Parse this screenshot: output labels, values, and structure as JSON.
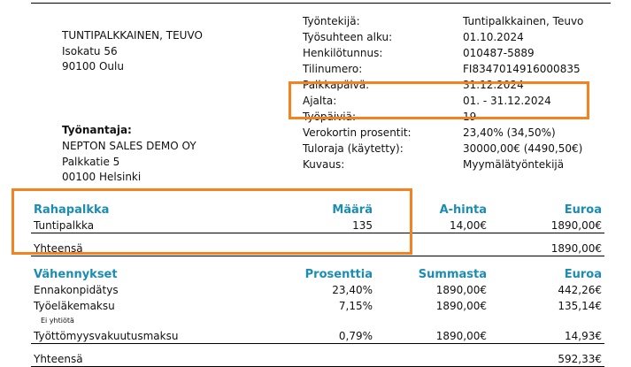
{
  "employee_address": [
    "TUNTIPALKKAINEN, TEUVO",
    "Isokatu 56",
    "90100 Oulu"
  ],
  "employer": {
    "title": "Työnantaja:",
    "lines": [
      "NEPTON SALES DEMO OY",
      "Palkkatie 5",
      "00100 Helsinki"
    ]
  },
  "info": [
    [
      "Työntekijä:",
      "Tuntipalkkainen, Teuvo"
    ],
    [
      "Työsuhteen alku:",
      "01.10.2024"
    ],
    [
      "Henkilötunnus:",
      "010487-5889"
    ],
    [
      "Tilinumero:",
      "FI8347014916000835"
    ],
    [
      "Palkkapäivä:",
      "31.12.2024"
    ],
    [
      "Ajalta:",
      "01. - 31.12.2024"
    ],
    [
      "Työpäiviä:",
      "19"
    ],
    [
      "Verokortin prosentit:",
      "23,40% (34,50%)"
    ],
    [
      "Tuloraja (käytetty):",
      "30000,00€ (4490,50€)"
    ],
    [
      "Kuvaus:",
      "Myymälätyöntekijä"
    ]
  ],
  "pay": {
    "header": [
      "Rahapalkka",
      "Määrä",
      "A-hinta",
      "Euroa"
    ],
    "rows": [
      [
        "Tuntipalkka",
        "135",
        "14,00€",
        "1890,00€"
      ]
    ],
    "total": [
      "Yhteensä",
      "1890,00€"
    ]
  },
  "deductions": {
    "header": [
      "Vähennykset",
      "Prosenttia",
      "Summasta",
      "Euroa"
    ],
    "rows": [
      [
        "Ennakonpidätys",
        "23,40%",
        "1890,00€",
        "442,26€"
      ],
      [
        "Työeläkemaksu",
        "7,15%",
        "1890,00€",
        "135,14€"
      ],
      [
        "Työttömyysvakuutusmaksu",
        "0,79%",
        "1890,00€",
        "14,93€"
      ]
    ],
    "note": "Ei yhtiötä",
    "total": [
      "Yhteensä",
      "592,33€"
    ]
  }
}
